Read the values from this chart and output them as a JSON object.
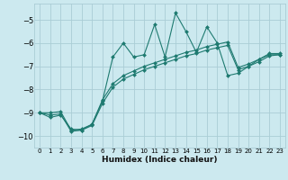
{
  "xlabel": "Humidex (Indice chaleur)",
  "bg_color": "#cce9ef",
  "grid_color": "#aacdd5",
  "line_color": "#1e7a70",
  "xlim": [
    -0.5,
    23.5
  ],
  "ylim": [
    -10.5,
    -4.3
  ],
  "yticks": [
    -10,
    -9,
    -8,
    -7,
    -6,
    -5
  ],
  "xticks": [
    0,
    1,
    2,
    3,
    4,
    5,
    6,
    7,
    8,
    9,
    10,
    11,
    12,
    13,
    14,
    15,
    16,
    17,
    18,
    19,
    20,
    21,
    22,
    23
  ],
  "series1_x": [
    0,
    1,
    2,
    3,
    4,
    5,
    6,
    7,
    8,
    9,
    10,
    11,
    12,
    13,
    14,
    15,
    16,
    17,
    18,
    19,
    20,
    21,
    22,
    23
  ],
  "series1_y": [
    -9.0,
    -9.2,
    -9.1,
    -9.7,
    -9.75,
    -9.5,
    -8.5,
    -6.6,
    -6.0,
    -6.6,
    -6.5,
    -5.2,
    -6.6,
    -4.7,
    -5.5,
    -6.4,
    -5.3,
    -6.0,
    -7.4,
    -7.3,
    -7.0,
    -6.7,
    -6.5,
    -6.5
  ],
  "series2_x": [
    0,
    1,
    2,
    3,
    4,
    5,
    6,
    7,
    8,
    9,
    10,
    11,
    12,
    13,
    14,
    15,
    16,
    17,
    18,
    19,
    20,
    21,
    22,
    23
  ],
  "series2_y": [
    -9.0,
    -9.1,
    -9.05,
    -9.8,
    -9.75,
    -9.55,
    -8.6,
    -7.9,
    -7.55,
    -7.35,
    -7.15,
    -7.0,
    -6.85,
    -6.7,
    -6.55,
    -6.45,
    -6.3,
    -6.2,
    -6.1,
    -7.15,
    -7.0,
    -6.8,
    -6.55,
    -6.5
  ],
  "series3_x": [
    0,
    1,
    2,
    3,
    4,
    5,
    6,
    7,
    8,
    9,
    10,
    11,
    12,
    13,
    14,
    15,
    16,
    17,
    18,
    19,
    20,
    21,
    22,
    23
  ],
  "series3_y": [
    -9.0,
    -9.0,
    -8.95,
    -9.75,
    -9.7,
    -9.5,
    -8.45,
    -7.75,
    -7.4,
    -7.2,
    -7.0,
    -6.85,
    -6.7,
    -6.55,
    -6.4,
    -6.3,
    -6.15,
    -6.05,
    -5.95,
    -7.05,
    -6.9,
    -6.7,
    -6.45,
    -6.45
  ]
}
